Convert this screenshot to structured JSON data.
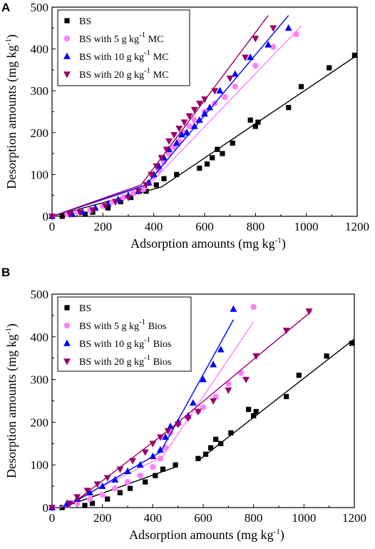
{
  "chart_data": [
    {
      "type": "scatter",
      "panel_label": "A",
      "xlabel": "Adsorption amounts (mg kg",
      "xlabel_sup": "-1",
      "xlabel_end": ")",
      "ylabel": "Desorption amounts (mg kg",
      "ylabel_sup": "-1",
      "ylabel_end": ")",
      "xlim": [
        0,
        1200
      ],
      "ylim": [
        0,
        500
      ],
      "xticks": [
        0,
        200,
        400,
        600,
        800,
        1000,
        1200
      ],
      "yticks": [
        0,
        100,
        200,
        300,
        400,
        500
      ],
      "legend_position": "top-left",
      "series": [
        {
          "name": "BS",
          "name_prefix": "BS",
          "name_sup": "",
          "name_suffix": "",
          "color": "#000000",
          "marker": "square",
          "points": [
            [
              40,
              0
            ],
            [
              130,
              5
            ],
            [
              160,
              10
            ],
            [
              220,
              20
            ],
            [
              270,
              35
            ],
            [
              310,
              45
            ],
            [
              370,
              60
            ],
            [
              410,
              75
            ],
            [
              440,
              90
            ],
            [
              490,
              100
            ],
            [
              580,
              115
            ],
            [
              610,
              125
            ],
            [
              630,
              140
            ],
            [
              650,
              160
            ],
            [
              670,
              150
            ],
            [
              710,
              175
            ],
            [
              780,
              230
            ],
            [
              800,
              215
            ],
            [
              810,
              225
            ],
            [
              930,
              260
            ],
            [
              980,
              310
            ],
            [
              1090,
              355
            ],
            [
              1190,
              385
            ]
          ],
          "fit_lines": [
            [
              [
                0,
                0
              ],
              [
                430,
                70
              ]
            ],
            [
              [
                430,
                70
              ],
              [
                1200,
                385
              ]
            ]
          ]
        },
        {
          "name": "BS with 5 g kg-1 MC",
          "name_prefix": "BS with 5 g kg",
          "name_sup": "-1",
          "name_suffix": " MC",
          "color": "#ff80ff",
          "marker": "circle",
          "points": [
            [
              0,
              0
            ],
            [
              60,
              5
            ],
            [
              100,
              10
            ],
            [
              150,
              15
            ],
            [
              200,
              25
            ],
            [
              240,
              35
            ],
            [
              280,
              45
            ],
            [
              320,
              55
            ],
            [
              360,
              65
            ],
            [
              380,
              80
            ],
            [
              400,
              95
            ],
            [
              420,
              110
            ],
            [
              440,
              130
            ],
            [
              460,
              150
            ],
            [
              480,
              165
            ],
            [
              500,
              180
            ],
            [
              520,
              200
            ],
            [
              540,
              215
            ],
            [
              560,
              230
            ],
            [
              600,
              250
            ],
            [
              640,
              270
            ],
            [
              680,
              285
            ],
            [
              720,
              310
            ],
            [
              800,
              360
            ],
            [
              870,
              405
            ],
            [
              960,
              435
            ]
          ],
          "fit_lines": [
            [
              [
                0,
                0
              ],
              [
                380,
                75
              ]
            ],
            [
              [
                380,
                75
              ],
              [
                980,
                455
              ]
            ]
          ]
        },
        {
          "name": "BS with 10 g kg-1 MC",
          "name_prefix": "BS with 10 g kg",
          "name_sup": "-1",
          "name_suffix": " MC",
          "color": "#0000ff",
          "marker": "triangle-up",
          "points": [
            [
              0,
              0
            ],
            [
              80,
              5
            ],
            [
              120,
              10
            ],
            [
              170,
              20
            ],
            [
              220,
              30
            ],
            [
              260,
              40
            ],
            [
              300,
              50
            ],
            [
              340,
              60
            ],
            [
              380,
              80
            ],
            [
              400,
              100
            ],
            [
              420,
              120
            ],
            [
              440,
              140
            ],
            [
              460,
              160
            ],
            [
              490,
              175
            ],
            [
              510,
              195
            ],
            [
              530,
              200
            ],
            [
              560,
              215
            ],
            [
              580,
              230
            ],
            [
              600,
              245
            ],
            [
              620,
              260
            ],
            [
              660,
              300
            ],
            [
              720,
              340
            ],
            [
              780,
              380
            ],
            [
              850,
              410
            ],
            [
              930,
              450
            ]
          ],
          "fit_lines": [
            [
              [
                0,
                0
              ],
              [
                370,
                75
              ]
            ],
            [
              [
                370,
                75
              ],
              [
                930,
                480
              ]
            ]
          ]
        },
        {
          "name": "BS with 20 g kg-1 MC",
          "name_prefix": "BS with 20 g kg",
          "name_sup": "-1",
          "name_suffix": " MC",
          "color": "#990066",
          "marker": "triangle-down",
          "points": [
            [
              0,
              0
            ],
            [
              70,
              5
            ],
            [
              110,
              10
            ],
            [
              160,
              15
            ],
            [
              210,
              25
            ],
            [
              250,
              35
            ],
            [
              300,
              45
            ],
            [
              340,
              60
            ],
            [
              370,
              75
            ],
            [
              390,
              100
            ],
            [
              410,
              120
            ],
            [
              430,
              140
            ],
            [
              450,
              160
            ],
            [
              460,
              180
            ],
            [
              480,
              195
            ],
            [
              500,
              210
            ],
            [
              520,
              225
            ],
            [
              540,
              240
            ],
            [
              560,
              255
            ],
            [
              580,
              270
            ],
            [
              600,
              280
            ],
            [
              640,
              300
            ],
            [
              700,
              330
            ],
            [
              760,
              380
            ],
            [
              800,
              425
            ],
            [
              870,
              450
            ]
          ],
          "fit_lines": [
            [
              [
                0,
                0
              ],
              [
                350,
                75
              ]
            ],
            [
              [
                350,
                75
              ],
              [
                850,
                480
              ]
            ]
          ]
        }
      ]
    },
    {
      "type": "scatter",
      "panel_label": "B",
      "xlabel": "Adsorption amounts (mg kg",
      "xlabel_sup": "-1",
      "xlabel_end": ")",
      "ylabel": "Desorption amounts (mg kg",
      "ylabel_sup": "-1",
      "ylabel_end": ")",
      "xlim": [
        0,
        1200
      ],
      "ylim": [
        0,
        500
      ],
      "xticks": [
        0,
        200,
        400,
        600,
        800,
        1000,
        1200
      ],
      "yticks": [
        0,
        100,
        200,
        300,
        400,
        500
      ],
      "legend_position": "top-left",
      "series": [
        {
          "name": "BS",
          "name_prefix": "BS",
          "name_sup": "",
          "name_suffix": "",
          "color": "#000000",
          "marker": "square",
          "points": [
            [
              40,
              0
            ],
            [
              130,
              5
            ],
            [
              160,
              10
            ],
            [
              220,
              20
            ],
            [
              270,
              35
            ],
            [
              310,
              45
            ],
            [
              370,
              60
            ],
            [
              410,
              75
            ],
            [
              440,
              90
            ],
            [
              490,
              100
            ],
            [
              580,
              115
            ],
            [
              610,
              125
            ],
            [
              630,
              140
            ],
            [
              650,
              160
            ],
            [
              670,
              150
            ],
            [
              710,
              175
            ],
            [
              780,
              230
            ],
            [
              800,
              215
            ],
            [
              810,
              225
            ],
            [
              930,
              260
            ],
            [
              980,
              310
            ],
            [
              1090,
              355
            ],
            [
              1190,
              385
            ]
          ],
          "fit_lines": [
            [
              [
                40,
                0
              ],
              [
                490,
                95
              ]
            ],
            [
              [
                580,
                110
              ],
              [
                1200,
                395
              ]
            ]
          ]
        },
        {
          "name": "BS with 5 g kg-1 Bios",
          "name_prefix": "BS with 5 g kg",
          "name_sup": "-1",
          "name_suffix": " Bios",
          "color": "#ff80ff",
          "marker": "circle",
          "points": [
            [
              0,
              0
            ],
            [
              60,
              5
            ],
            [
              100,
              10
            ],
            [
              150,
              20
            ],
            [
              200,
              30
            ],
            [
              250,
              45
            ],
            [
              300,
              60
            ],
            [
              350,
              75
            ],
            [
              400,
              95
            ],
            [
              430,
              115
            ],
            [
              450,
              140
            ],
            [
              470,
              175
            ],
            [
              500,
              195
            ],
            [
              540,
              210
            ],
            [
              580,
              225
            ],
            [
              600,
              235
            ],
            [
              650,
              260
            ],
            [
              700,
              290
            ],
            [
              750,
              315
            ],
            [
              800,
              470
            ]
          ],
          "fit_lines": [
            [
              [
                30,
                0
              ],
              [
                440,
                120
              ]
            ],
            [
              [
                440,
                120
              ],
              [
                800,
                435
              ]
            ]
          ]
        },
        {
          "name": "BS with 10 g kg-1 Bios",
          "name_prefix": "BS with 10 g kg",
          "name_sup": "-1",
          "name_suffix": " Bios",
          "color": "#0000ff",
          "marker": "triangle-up",
          "points": [
            [
              0,
              0
            ],
            [
              60,
              10
            ],
            [
              100,
              20
            ],
            [
              150,
              35
            ],
            [
              200,
              50
            ],
            [
              250,
              65
            ],
            [
              300,
              85
            ],
            [
              350,
              100
            ],
            [
              400,
              120
            ],
            [
              430,
              135
            ],
            [
              450,
              165
            ],
            [
              470,
              190
            ],
            [
              500,
              200
            ],
            [
              540,
              215
            ],
            [
              560,
              245
            ],
            [
              600,
              300
            ],
            [
              640,
              335
            ],
            [
              670,
              370
            ],
            [
              720,
              465
            ]
          ],
          "fit_lines": [
            [
              [
                50,
                0
              ],
              [
                430,
                130
              ]
            ],
            [
              [
                430,
                130
              ],
              [
                720,
                440
              ]
            ]
          ]
        },
        {
          "name": "BS with 20 g kg-1 Bios",
          "name_prefix": "BS with 20 g kg",
          "name_sup": "-1",
          "name_suffix": " Bios",
          "color": "#990066",
          "marker": "triangle-down",
          "points": [
            [
              0,
              0
            ],
            [
              70,
              10
            ],
            [
              100,
              25
            ],
            [
              140,
              40
            ],
            [
              180,
              55
            ],
            [
              220,
              70
            ],
            [
              270,
              90
            ],
            [
              320,
              110
            ],
            [
              370,
              130
            ],
            [
              400,
              150
            ],
            [
              430,
              165
            ],
            [
              460,
              180
            ],
            [
              500,
              195
            ],
            [
              540,
              210
            ],
            [
              580,
              225
            ],
            [
              640,
              250
            ],
            [
              700,
              275
            ],
            [
              770,
              300
            ],
            [
              810,
              355
            ],
            [
              930,
              415
            ],
            [
              1020,
              460
            ]
          ],
          "fit_lines": [
            [
              [
                60,
                0
              ],
              [
                460,
                180
              ]
            ],
            [
              [
                460,
                180
              ],
              [
                1030,
                460
              ]
            ]
          ]
        }
      ]
    }
  ]
}
